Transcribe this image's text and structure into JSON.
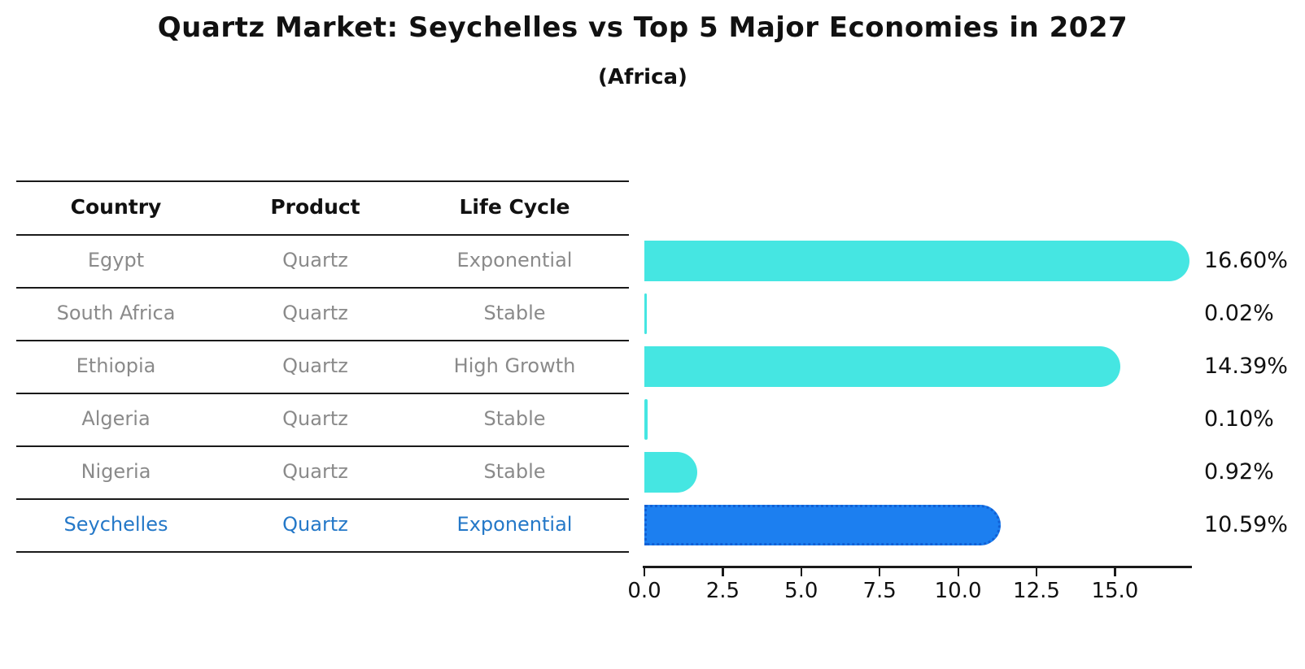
{
  "title": "Quartz Market: Seychelles vs Top 5 Major Economies in 2027",
  "subtitle": "(Africa)",
  "table": {
    "headers": [
      "Country",
      "Product",
      "Life Cycle"
    ],
    "rows": [
      {
        "country": "Egypt",
        "product": "Quartz",
        "life_cycle": "Exponential",
        "highlight": false
      },
      {
        "country": "South Africa",
        "product": "Quartz",
        "life_cycle": "Stable",
        "highlight": false
      },
      {
        "country": "Ethiopia",
        "product": "Quartz",
        "life_cycle": "High Growth",
        "highlight": false
      },
      {
        "country": "Algeria",
        "product": "Quartz",
        "life_cycle": "Stable",
        "highlight": false
      },
      {
        "country": "Nigeria",
        "product": "Quartz",
        "life_cycle": "Stable",
        "highlight": false
      },
      {
        "country": "Seychelles",
        "product": "Quartz",
        "life_cycle": "Exponential",
        "highlight": true
      }
    ]
  },
  "chart_data": {
    "type": "bar",
    "orientation": "horizontal",
    "title": "Quartz Market: Seychelles vs Top 5 Major Economies in 2027",
    "subtitle": "(Africa)",
    "categories": [
      "Egypt",
      "South Africa",
      "Ethiopia",
      "Algeria",
      "Nigeria",
      "Seychelles"
    ],
    "values": [
      16.6,
      0.02,
      14.39,
      0.1,
      0.92,
      10.59
    ],
    "value_labels": [
      "16.60%",
      "0.02%",
      "14.39%",
      "0.10%",
      "0.92%",
      "10.59%"
    ],
    "x_ticks": [
      "0.0",
      "2.5",
      "5.0",
      "7.5",
      "10.0",
      "12.5",
      "15.0"
    ],
    "xlim": [
      0,
      17.5
    ],
    "grid": false,
    "legend": "none",
    "highlight_index": 5,
    "colors": {
      "bar_default": "#45E6E2",
      "bar_highlight": "#1C7FF0",
      "bar_highlight_border": "#1160D5",
      "highlight_text": "#2478C8",
      "cell_text": "#8a8a8a",
      "axis_text": "#111111",
      "line": "#1a1a1a"
    }
  }
}
